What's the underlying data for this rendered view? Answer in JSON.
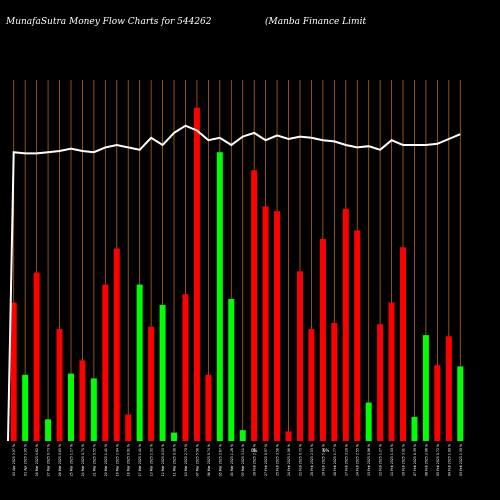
{
  "chart_data": {
    "type": "bar",
    "title": "MunafaSutra  Money Flow  Charts for 544262",
    "subtitle": "(Manba  Finance   Limit",
    "colors": {
      "background": "#000000",
      "positive": "#00ff00",
      "negative": "#ff0000",
      "line": "#ffffff",
      "grid": "#b5651d"
    },
    "grid": true,
    "categories": [
      "02 Apr 2025 3.07 %",
      "01 Apr 2025 1.05 %",
      "28 Mar 2025 4.62 %",
      "27 Mar 2025 0.73 %",
      "26 Mar 2025 0.85 %",
      "25 Mar 2025 1.17 %",
      "24 Mar 2025 0.74 %",
      "21 Mar 2025 0.55 %",
      "20 Mar 2025 1.41 %",
      "19 Mar 2025 2.94 %",
      "18 Mar 2025 0.91 %",
      "17 Mar 2025 1.41 %",
      "13 Mar 2025 1.32 %",
      "12 Mar 2025 0.53 %",
      "11 Mar 2025 0.38 %",
      "10 Mar 2025 2.70 %",
      "07 Mar 2025 5.58 %",
      "06 Mar 2025 0.74 %",
      "05 Mar 2025 2.67 %",
      "04 Mar 2025 1.26 %",
      "03 Mar 2025 3.11 %",
      "28 Feb 2025 2.84 %",
      "27 Feb 2025 0.97 %",
      "25 Feb 2025 3.58 %",
      "24 Feb 2025 1.08 %",
      "21 Feb 2025 0.73 %",
      "20 Feb 2025 2.53 %",
      "19 Feb 2025 5.34 %",
      "18 Feb 2025 1.77 %",
      "17 Feb 2025 3.20 %",
      "14 Feb 2025 2.55 %",
      "13 Feb 2025 0.96 %",
      "12 Feb 2025 1.27 %",
      "11 Feb 2025 1.50 %",
      "10 Feb 2025 3.01 %",
      "07 Feb 2025 0.39 %",
      "06 Feb 2025 2.06 %",
      "05 Feb 2025 0.72 %",
      "04 Feb 2025 1.00 %",
      "03 Feb 2025 1.30 %"
    ],
    "bar_colors": [
      "red",
      "green",
      "red",
      "green",
      "red",
      "green",
      "red",
      "green",
      "red",
      "red",
      "red",
      "green",
      "red",
      "green",
      "green",
      "red",
      "red",
      "red",
      "green",
      "green",
      "green",
      "red",
      "red",
      "red",
      "red",
      "red",
      "red",
      "red",
      "red",
      "red",
      "red",
      "green",
      "red",
      "red",
      "red",
      "green",
      "green",
      "red",
      "red",
      "green"
    ],
    "bar_values": [
      115,
      55,
      140,
      18,
      93,
      56,
      67,
      52,
      130,
      160,
      22,
      130,
      95,
      113,
      7,
      122,
      277,
      55,
      240,
      118,
      9,
      225,
      195,
      191,
      8,
      141,
      93,
      168,
      98,
      193,
      175,
      32,
      97,
      115,
      161,
      20,
      88,
      63,
      87,
      62
    ],
    "line_values": [
      240,
      239,
      239,
      240,
      241,
      243,
      241,
      240,
      244,
      246,
      244,
      242,
      252,
      246,
      256,
      262,
      258,
      250,
      252,
      246,
      253,
      256,
      250,
      254,
      251,
      253,
      252,
      250,
      249,
      246,
      244,
      245,
      242,
      250,
      246,
      246,
      246,
      247,
      251,
      255
    ],
    "y_range": [
      0,
      300
    ],
    "marks": [
      "0%",
      "0%"
    ]
  }
}
